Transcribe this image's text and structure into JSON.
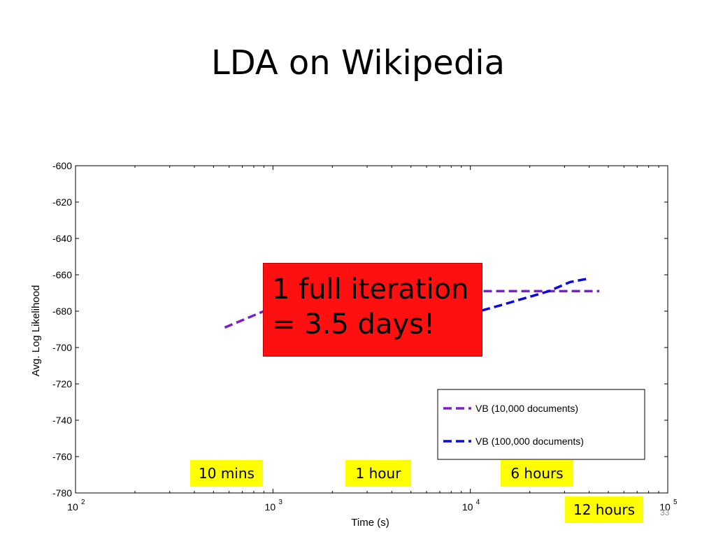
{
  "slide": {
    "title": "LDA on Wikipedia",
    "page_number": "33"
  },
  "callout": {
    "line1": "1 full iteration",
    "line2": "= 3.5 days!",
    "color": "#ff1010"
  },
  "time_tags": [
    {
      "label": "10 mins"
    },
    {
      "label": "1 hour"
    },
    {
      "label": "6 hours"
    },
    {
      "label": "12 hours"
    }
  ],
  "chart_data": {
    "type": "line",
    "title": "",
    "xlabel": "Time (s)",
    "ylabel": "Avg. Log Likelihood",
    "xscale": "log",
    "xlim": [
      100,
      100000
    ],
    "ylim": [
      -780,
      -600
    ],
    "x_ticks": [
      {
        "value": 100,
        "base": "10",
        "exp": "2"
      },
      {
        "value": 1000,
        "base": "10",
        "exp": "3"
      },
      {
        "value": 10000,
        "base": "10",
        "exp": "4"
      },
      {
        "value": 100000,
        "base": "10",
        "exp": "5"
      }
    ],
    "y_ticks": [
      -600,
      -620,
      -640,
      -660,
      -680,
      -700,
      -720,
      -740,
      -760,
      -780
    ],
    "grid": false,
    "legend_position": "bottom-right",
    "series": [
      {
        "name": "VB (10,000 documents)",
        "color": "#7b1fd6",
        "style": "dashed",
        "x": [
          570,
          1050,
          3200,
          7600,
          25000,
          45000
        ],
        "y": [
          -689,
          -677,
          -669,
          -669,
          -669,
          -669
        ]
      },
      {
        "name": "VB (100,000 documents)",
        "color": "#0a0ae0",
        "style": "dashed",
        "x": [
          6500,
          14000,
          25000,
          32000,
          40000
        ],
        "y": [
          -687,
          -677,
          -669,
          -664,
          -662
        ]
      }
    ]
  }
}
